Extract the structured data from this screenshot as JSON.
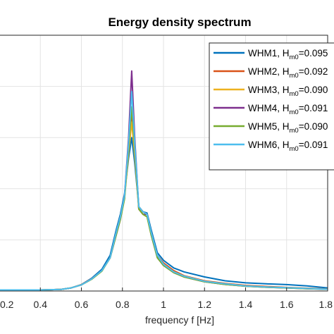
{
  "chart_data": {
    "type": "line",
    "title": "Energy density spectrum",
    "xlabel": "frequency f [Hz]",
    "ylabel": "",
    "xlim": [
      0.2,
      1.8
    ],
    "ylim": [
      0,
      1.0
    ],
    "grid": true,
    "legend_position": "top-right",
    "x_ticks": [
      "0.2",
      "0.4",
      "0.6",
      "0.8",
      "1",
      "1.2",
      "1.4",
      "1.6",
      "1.8"
    ],
    "x": [
      0.2,
      0.4,
      0.5,
      0.55,
      0.6,
      0.65,
      0.7,
      0.74,
      0.77,
      0.79,
      0.81,
      0.83,
      0.845,
      0.86,
      0.88,
      0.9,
      0.92,
      0.94,
      0.97,
      1.0,
      1.05,
      1.1,
      1.2,
      1.3,
      1.4,
      1.5,
      1.6,
      1.7,
      1.8
    ],
    "series": [
      {
        "label": "WHM1, H",
        "sub": "m0",
        "value_text": "=0.095",
        "color": "#0072bd",
        "values": [
          0.004,
          0.004,
          0.006,
          0.012,
          0.025,
          0.05,
          0.085,
          0.14,
          0.24,
          0.3,
          0.38,
          0.52,
          0.6,
          0.5,
          0.33,
          0.31,
          0.305,
          0.24,
          0.15,
          0.12,
          0.09,
          0.075,
          0.055,
          0.04,
          0.032,
          0.028,
          0.025,
          0.02,
          0.012
        ]
      },
      {
        "label": "WHM2, H",
        "sub": "m0",
        "value_text": "=0.092",
        "color": "#d95319",
        "values": [
          0.004,
          0.004,
          0.006,
          0.012,
          0.025,
          0.048,
          0.08,
          0.13,
          0.23,
          0.29,
          0.37,
          0.55,
          0.7,
          0.55,
          0.33,
          0.31,
          0.3,
          0.23,
          0.14,
          0.11,
          0.08,
          0.06,
          0.04,
          0.03,
          0.022,
          0.018,
          0.014,
          0.011,
          0.008
        ]
      },
      {
        "label": "WHM3, H",
        "sub": "m0",
        "value_text": "=0.090",
        "color": "#edb120",
        "values": [
          0.004,
          0.004,
          0.006,
          0.012,
          0.024,
          0.046,
          0.078,
          0.13,
          0.22,
          0.28,
          0.36,
          0.54,
          0.66,
          0.53,
          0.32,
          0.3,
          0.29,
          0.22,
          0.135,
          0.105,
          0.075,
          0.058,
          0.038,
          0.028,
          0.02,
          0.016,
          0.013,
          0.01,
          0.007
        ]
      },
      {
        "label": "WHM4, H",
        "sub": "m0",
        "value_text": "=0.091",
        "color": "#7e2f8e",
        "values": [
          0.004,
          0.004,
          0.006,
          0.012,
          0.024,
          0.047,
          0.08,
          0.13,
          0.22,
          0.28,
          0.37,
          0.6,
          0.86,
          0.6,
          0.32,
          0.3,
          0.3,
          0.22,
          0.13,
          0.1,
          0.072,
          0.055,
          0.036,
          0.026,
          0.019,
          0.015,
          0.012,
          0.009,
          0.007
        ]
      },
      {
        "label": "WHM5, H",
        "sub": "m0",
        "value_text": "=0.090",
        "color": "#77ac30",
        "values": [
          0.004,
          0.004,
          0.006,
          0.012,
          0.024,
          0.046,
          0.078,
          0.13,
          0.22,
          0.28,
          0.36,
          0.56,
          0.72,
          0.56,
          0.32,
          0.3,
          0.29,
          0.22,
          0.13,
          0.1,
          0.072,
          0.055,
          0.036,
          0.026,
          0.019,
          0.015,
          0.012,
          0.009,
          0.007
        ]
      },
      {
        "label": "WHM6, H",
        "sub": "m0",
        "value_text": "=0.091",
        "color": "#4dbeee",
        "values": [
          0.004,
          0.004,
          0.006,
          0.012,
          0.024,
          0.047,
          0.08,
          0.13,
          0.23,
          0.29,
          0.37,
          0.58,
          0.78,
          0.58,
          0.33,
          0.31,
          0.3,
          0.23,
          0.14,
          0.105,
          0.075,
          0.058,
          0.038,
          0.028,
          0.02,
          0.016,
          0.013,
          0.01,
          0.007
        ]
      }
    ]
  }
}
